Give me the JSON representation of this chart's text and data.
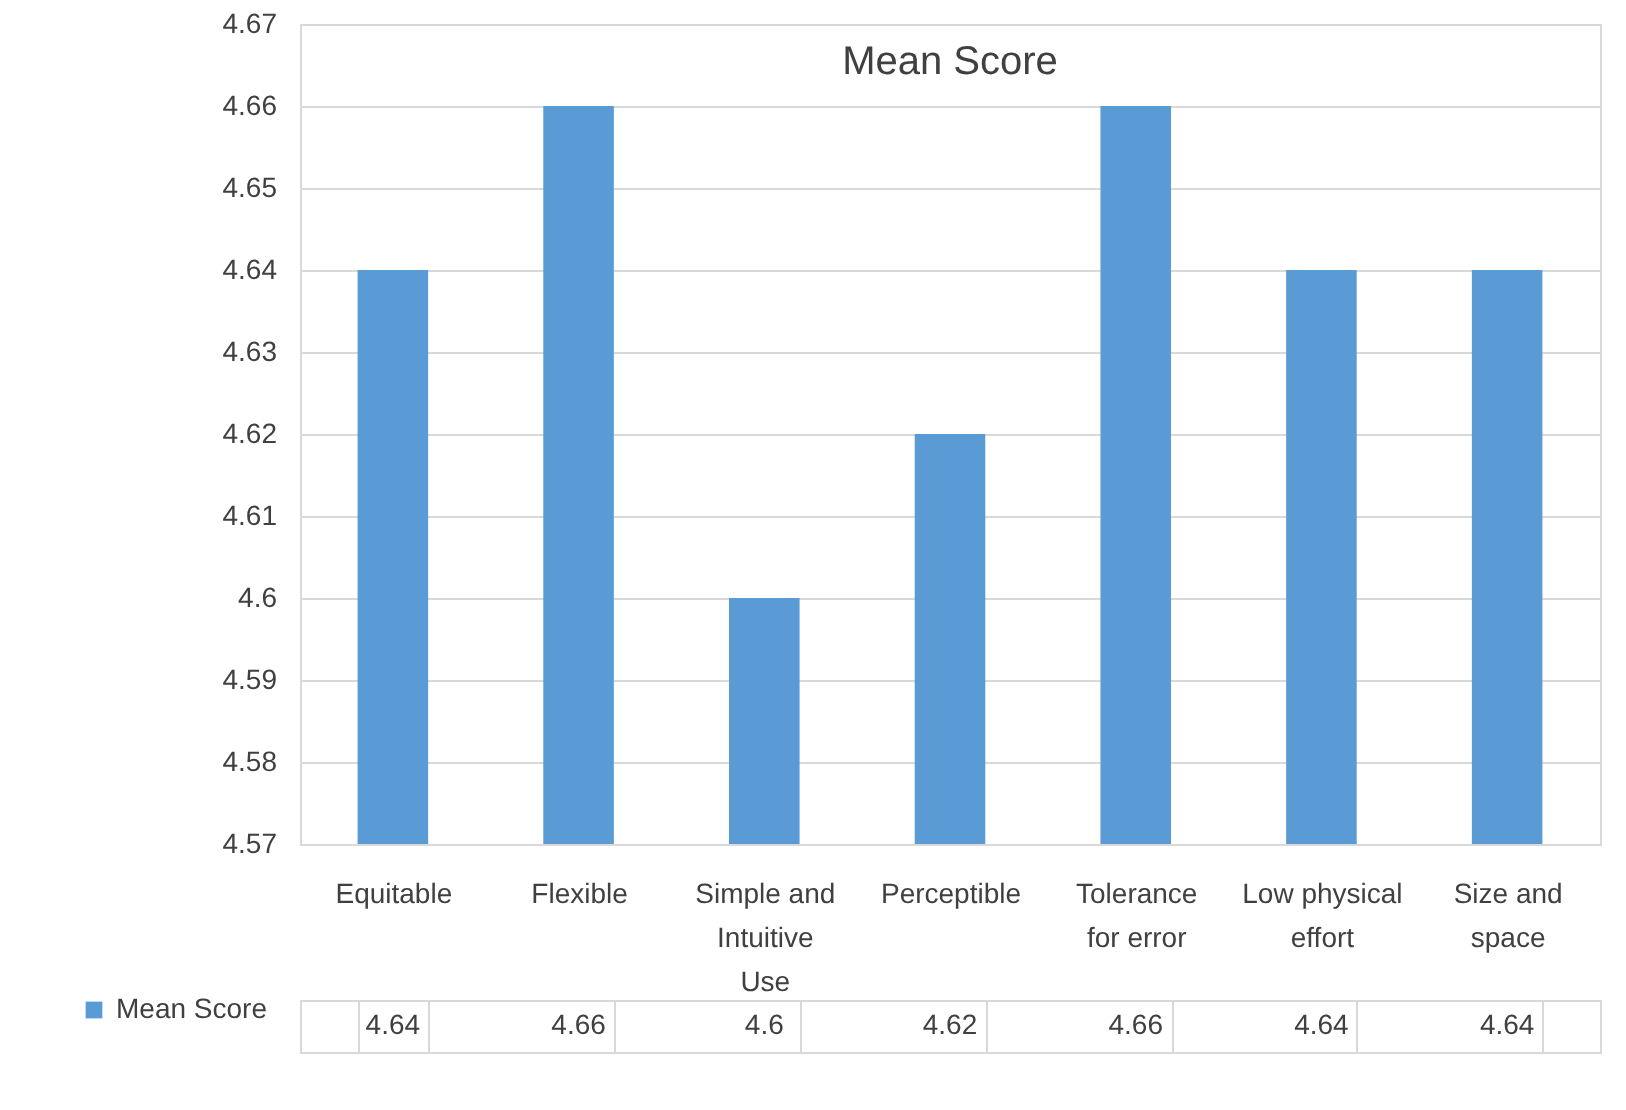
{
  "chart_data": {
    "type": "bar",
    "title": "Mean Score",
    "categories": [
      "Equitable",
      "Flexible",
      "Simple and Intuitive Use",
      "Perceptible",
      "Tolerance for error",
      "Low physical effort",
      "Size and space"
    ],
    "series": [
      {
        "name": "Mean Score",
        "color": "#5b9bd5",
        "values": [
          4.64,
          4.66,
          4.6,
          4.62,
          4.66,
          4.64,
          4.64
        ]
      }
    ],
    "ylim": [
      4.57,
      4.67
    ],
    "yticks": [
      4.57,
      4.58,
      4.59,
      4.6,
      4.61,
      4.62,
      4.63,
      4.64,
      4.65,
      4.66,
      4.67
    ],
    "grid": "y",
    "data_labels": true,
    "legend": "bottom left"
  }
}
